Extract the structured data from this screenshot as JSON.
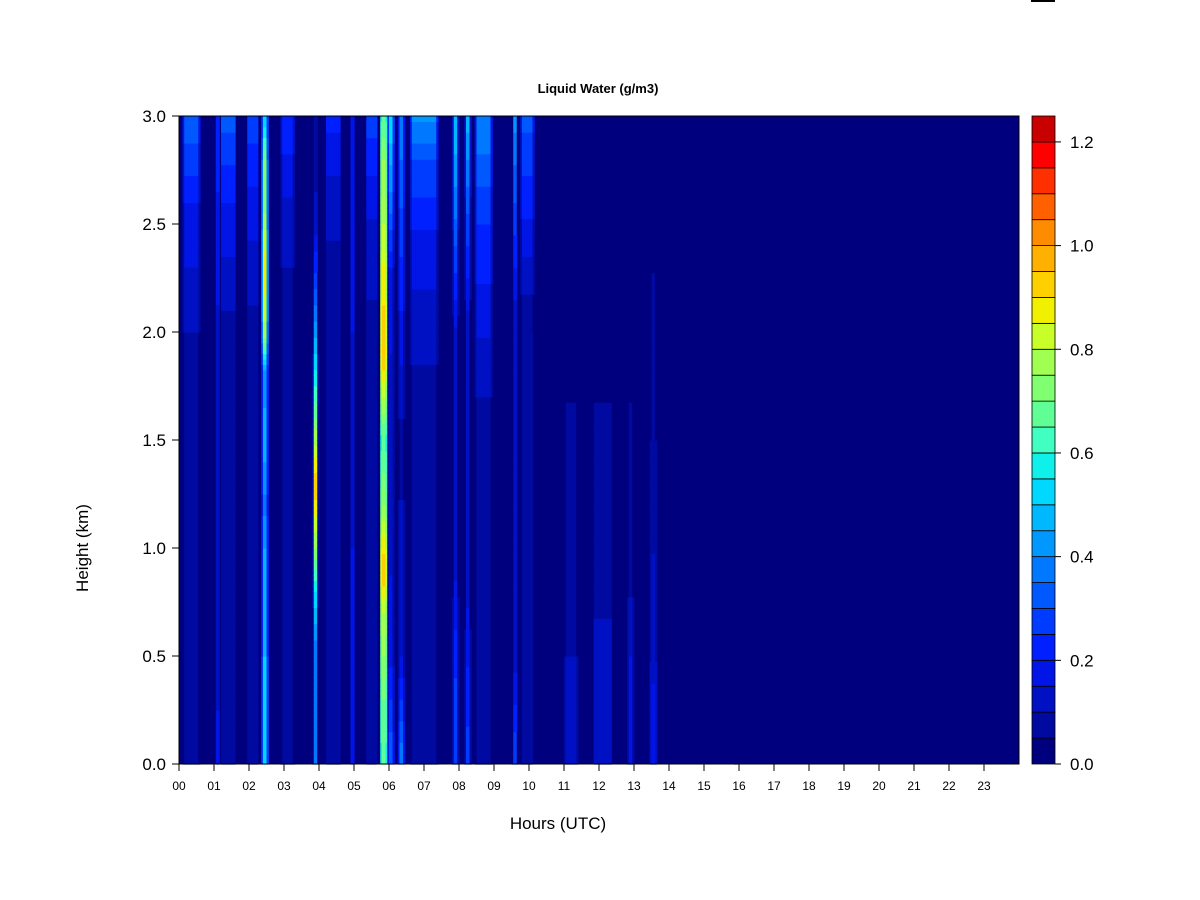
{
  "chart_data": {
    "type": "heatmap",
    "title": "Liquid Water (g/m3)",
    "xlabel": "Hours (UTC)",
    "ylabel": "Height (km)",
    "xlim": [
      0,
      24
    ],
    "ylim": [
      0,
      3
    ],
    "x_ticks": [
      "00",
      "01",
      "02",
      "03",
      "04",
      "05",
      "06",
      "07",
      "08",
      "09",
      "10",
      "11",
      "12",
      "13",
      "14",
      "15",
      "16",
      "17",
      "18",
      "19",
      "20",
      "21",
      "22",
      "23"
    ],
    "y_ticks": [
      "0.0",
      "0.5",
      "1.0",
      "1.5",
      "2.0",
      "2.5",
      "3.0"
    ],
    "colorbar": {
      "range": [
        0,
        1.25
      ],
      "step": 0.05,
      "tick_labels": [
        "0.0",
        "0.2",
        "0.4",
        "0.6",
        "0.8",
        "1.0",
        "1.2"
      ],
      "tick_values": [
        0,
        0.2,
        0.4,
        0.6,
        0.8,
        1.0,
        1.2
      ],
      "colors": [
        "#00007f",
        "#000aa0",
        "#0011c4",
        "#0015e6",
        "#0020ff",
        "#003cff",
        "#0058ff",
        "#0078ff",
        "#0098ff",
        "#00b8ff",
        "#00d8ff",
        "#10f0ea",
        "#40ffc0",
        "#60ff96",
        "#80ff70",
        "#a0ff50",
        "#c8ff28",
        "#f0f000",
        "#ffd000",
        "#ffb000",
        "#ff8c00",
        "#ff6000",
        "#ff3000",
        "#ff0000",
        "#c80000",
        "#7f0000"
      ]
    },
    "background_value": 0.02,
    "features": [
      {
        "hour": 2.45,
        "width_h": 0.1,
        "profile": [
          [
            0.0,
            0.55
          ],
          [
            0.5,
            0.5
          ],
          [
            1.0,
            0.45
          ],
          [
            1.2,
            0.38
          ],
          [
            1.5,
            0.48
          ],
          [
            1.8,
            0.42
          ],
          [
            2.0,
            0.78
          ],
          [
            2.3,
            0.9
          ],
          [
            2.6,
            0.72
          ],
          [
            2.8,
            0.7
          ],
          [
            3.0,
            0.5
          ]
        ]
      },
      {
        "hour": 3.9,
        "width_h": 0.06,
        "profile": [
          [
            0.0,
            0.4
          ],
          [
            0.5,
            0.35
          ],
          [
            0.8,
            0.55
          ],
          [
            1.0,
            0.75
          ],
          [
            1.3,
            0.95
          ],
          [
            1.6,
            0.7
          ],
          [
            1.9,
            0.5
          ],
          [
            2.2,
            0.3
          ],
          [
            2.5,
            0.12
          ],
          [
            3.0,
            0.05
          ]
        ]
      },
      {
        "hour": 5.85,
        "width_h": 0.14,
        "profile": [
          [
            0.0,
            0.65
          ],
          [
            0.3,
            0.7
          ],
          [
            0.7,
            0.8
          ],
          [
            0.9,
            0.95
          ],
          [
            1.2,
            0.75
          ],
          [
            1.5,
            0.65
          ],
          [
            1.9,
            0.95
          ],
          [
            2.2,
            0.88
          ],
          [
            2.5,
            0.8
          ],
          [
            2.8,
            0.75
          ],
          [
            3.0,
            0.65
          ]
        ]
      },
      {
        "hour": 6.05,
        "width_h": 0.1,
        "profile": [
          [
            0.0,
            0.35
          ],
          [
            0.5,
            0.18
          ],
          [
            1.5,
            0.1
          ],
          [
            2.3,
            0.2
          ],
          [
            2.6,
            0.38
          ],
          [
            3.0,
            0.55
          ]
        ]
      },
      {
        "hour": 6.35,
        "width_h": 0.1,
        "profile": [
          [
            0.0,
            0.4
          ],
          [
            0.5,
            0.15
          ],
          [
            1.5,
            0.08
          ],
          [
            2.5,
            0.28
          ],
          [
            3.0,
            0.4
          ]
        ]
      },
      {
        "hour": 0.35,
        "width_h": 0.4,
        "profile": [
          [
            0.0,
            0.1
          ],
          [
            1.0,
            0.06
          ],
          [
            2.0,
            0.1
          ],
          [
            2.6,
            0.2
          ],
          [
            3.0,
            0.35
          ]
        ]
      },
      {
        "hour": 1.1,
        "width_h": 0.05,
        "profile": [
          [
            0.0,
            0.16
          ],
          [
            1.5,
            0.1
          ],
          [
            2.5,
            0.18
          ],
          [
            3.0,
            0.25
          ]
        ]
      },
      {
        "hour": 1.4,
        "width_h": 0.35,
        "profile": [
          [
            0.0,
            0.08
          ],
          [
            2.0,
            0.08
          ],
          [
            2.6,
            0.2
          ],
          [
            3.0,
            0.32
          ]
        ]
      },
      {
        "hour": 2.1,
        "width_h": 0.25,
        "profile": [
          [
            0.0,
            0.08
          ],
          [
            2.0,
            0.08
          ],
          [
            2.6,
            0.18
          ],
          [
            3.0,
            0.28
          ]
        ]
      },
      {
        "hour": 3.1,
        "width_h": 0.3,
        "profile": [
          [
            0.0,
            0.08
          ],
          [
            2.0,
            0.06
          ],
          [
            2.6,
            0.14
          ],
          [
            3.0,
            0.25
          ]
        ]
      },
      {
        "hour": 4.4,
        "width_h": 0.35,
        "profile": [
          [
            0.0,
            0.06
          ],
          [
            2.0,
            0.05
          ],
          [
            2.6,
            0.12
          ],
          [
            3.0,
            0.22
          ]
        ]
      },
      {
        "hour": 4.95,
        "width_h": 0.04,
        "profile": [
          [
            0.0,
            0.2
          ],
          [
            1.5,
            0.15
          ],
          [
            3.0,
            0.2
          ]
        ]
      },
      {
        "hour": 5.5,
        "width_h": 0.25,
        "profile": [
          [
            0.0,
            0.1
          ],
          [
            2.0,
            0.08
          ],
          [
            2.6,
            0.16
          ],
          [
            3.0,
            0.28
          ]
        ]
      },
      {
        "hour": 7.0,
        "width_h": 0.7,
        "profile": [
          [
            0.0,
            0.06
          ],
          [
            1.5,
            0.05
          ],
          [
            2.4,
            0.18
          ],
          [
            2.8,
            0.3
          ],
          [
            3.0,
            0.42
          ]
        ]
      },
      {
        "hour": 7.9,
        "width_h": 0.08,
        "profile": [
          [
            0.0,
            0.3
          ],
          [
            0.4,
            0.25
          ],
          [
            1.0,
            0.12
          ],
          [
            2.0,
            0.14
          ],
          [
            2.6,
            0.38
          ],
          [
            3.0,
            0.5
          ]
        ]
      },
      {
        "hour": 8.25,
        "width_h": 0.08,
        "profile": [
          [
            0.0,
            0.28
          ],
          [
            1.0,
            0.1
          ],
          [
            2.0,
            0.12
          ],
          [
            2.6,
            0.32
          ],
          [
            3.0,
            0.48
          ]
        ]
      },
      {
        "hour": 8.7,
        "width_h": 0.4,
        "profile": [
          [
            0.0,
            0.08
          ],
          [
            1.5,
            0.06
          ],
          [
            2.5,
            0.25
          ],
          [
            3.0,
            0.4
          ]
        ]
      },
      {
        "hour": 9.6,
        "width_h": 0.06,
        "profile": [
          [
            0.0,
            0.3
          ],
          [
            0.5,
            0.12
          ],
          [
            2.0,
            0.1
          ],
          [
            2.6,
            0.3
          ],
          [
            3.0,
            0.42
          ]
        ]
      },
      {
        "hour": 9.95,
        "width_h": 0.3,
        "profile": [
          [
            0.0,
            0.05
          ],
          [
            2.0,
            0.05
          ],
          [
            2.6,
            0.22
          ],
          [
            3.0,
            0.32
          ]
        ]
      },
      {
        "hour": 11.2,
        "width_h": 0.3,
        "profile": [
          [
            0.0,
            0.14
          ],
          [
            0.5,
            0.1
          ],
          [
            1.0,
            0.06
          ],
          [
            3.0,
            0.03
          ]
        ]
      },
      {
        "hour": 12.1,
        "width_h": 0.45,
        "profile": [
          [
            0.0,
            0.14
          ],
          [
            0.5,
            0.12
          ],
          [
            1.0,
            0.06
          ],
          [
            3.0,
            0.03
          ]
        ]
      },
      {
        "hour": 12.9,
        "width_h": 0.1,
        "profile": [
          [
            0.0,
            0.2
          ],
          [
            0.5,
            0.15
          ],
          [
            1.0,
            0.06
          ],
          [
            3.0,
            0.03
          ]
        ]
      },
      {
        "hour": 13.55,
        "width_h": 0.12,
        "profile": [
          [
            0.0,
            0.18
          ],
          [
            0.5,
            0.14
          ],
          [
            1.2,
            0.08
          ],
          [
            3.0,
            0.03
          ]
        ]
      },
      {
        "hour": 15.9,
        "width_h": 0.1,
        "profile": [
          [
            0.0,
            0.03
          ],
          [
            1.3,
            0.05
          ],
          [
            2.0,
            0.04
          ],
          [
            3.0,
            0.03
          ]
        ]
      }
    ]
  }
}
